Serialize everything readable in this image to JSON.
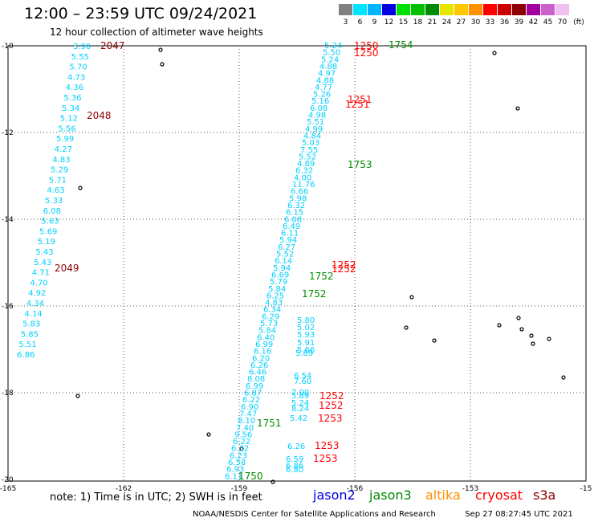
{
  "header": {
    "title": "12:00 – 23:59 UTC 09/24/2021",
    "subtitle": "12 hour collection of altimeter wave heights"
  },
  "legend": {
    "bins": [
      {
        "label": "3",
        "color": "#808080"
      },
      {
        "label": "6",
        "color": "#00e5ff"
      },
      {
        "label": "9",
        "color": "#00b5ff"
      },
      {
        "label": "12",
        "color": "#0000e0"
      },
      {
        "label": "15",
        "color": "#00e000"
      },
      {
        "label": "18",
        "color": "#00c000"
      },
      {
        "label": "21",
        "color": "#008c00"
      },
      {
        "label": "24",
        "color": "#e5e500"
      },
      {
        "label": "27",
        "color": "#ffc800"
      },
      {
        "label": "30",
        "color": "#ff9000"
      },
      {
        "label": "33",
        "color": "#ff0000"
      },
      {
        "label": "36",
        "color": "#cc0000"
      },
      {
        "label": "39",
        "color": "#8c0000"
      },
      {
        "label": "42",
        "color": "#a000a0"
      },
      {
        "label": "45",
        "color": "#cc60cc"
      },
      {
        "label": "70",
        "color": "#f0c0f0"
      }
    ],
    "unit": "(ft)"
  },
  "map": {
    "lat_labels": [
      "-10",
      "-12",
      "-14",
      "-16",
      "-18",
      "-20"
    ],
    "lon_labels": [
      "-165",
      "-162",
      "-159",
      "-156",
      "-153",
      "-15"
    ],
    "track_left": [
      "3.90",
      "5.55",
      "5.70",
      "4.73",
      "4.36",
      "5.36",
      "5.34",
      "5.12",
      "5.56",
      "5.99",
      "4.27",
      "4.83",
      "5.29",
      "5.71",
      "4.63",
      "5.33",
      "6.08",
      "5.63",
      "5.69",
      "5.19",
      "5.43",
      "5.43",
      "4.71",
      "4.70",
      "4.92",
      "4.34",
      "4.14",
      "5.83",
      "5.85",
      "5.51",
      "6.86"
    ],
    "track_left_times": [
      "2047",
      "2048",
      "2049"
    ],
    "track_mid": [
      "5.24",
      "5.50",
      "5.24",
      "4.88",
      "4.97",
      "4.88",
      "4.77",
      "5.26",
      "5.16",
      "6.08",
      "4.98",
      "5.51",
      "4.99",
      "4.84",
      "5.03",
      "7.55",
      "5.52",
      "4.89",
      "6.32",
      "4.00",
      "11.76",
      "6.66",
      "5.98",
      "6.32",
      "6.15",
      "6.08",
      "6.49",
      "6.11",
      "5.94",
      "6.27",
      "5.52",
      "6.14",
      "5.94",
      "6.69",
      "5.79",
      "5.84",
      "6.25",
      "4.83",
      "6.34",
      "6.29",
      "5.73",
      "5.84",
      "6.40",
      "6.99",
      "6.16",
      "6.20",
      "6.26",
      "6.46",
      "8.08",
      "6.99",
      "6.87",
      "6.22",
      "6.90",
      "7.47",
      "8.10",
      "7.40",
      "9.56",
      "6.22",
      "6.32",
      "6.23",
      "6.58",
      "6.93",
      "6.11"
    ],
    "track_mid_times_green": [
      "1754",
      "1753",
      "1752",
      "1752",
      "1751",
      "1750"
    ],
    "track_mid_times_red": [
      "1250",
      "1250",
      "1251",
      "1251",
      "1252",
      "1252"
    ],
    "track_right": [
      "5.80",
      "5.02",
      "5.93",
      "5.91",
      "5.66",
      "5.89",
      "6.54",
      "7.60",
      "7.00",
      "5.89",
      "5.24",
      "8.24",
      "5.42",
      "6.26",
      "6.59",
      "6.86",
      "6.80"
    ],
    "track_right_times": [
      "1252",
      "1252",
      "1253",
      "1253",
      "1253"
    ]
  },
  "footer": {
    "note": "note: 1) Time is in UTC; 2) SWH is in feet",
    "satellites": [
      {
        "name": "jason2",
        "color": "#0000e0"
      },
      {
        "name": "jason3",
        "color": "#008c00"
      },
      {
        "name": "altika",
        "color": "#ff9000"
      },
      {
        "name": "cryosat",
        "color": "#ff0000"
      },
      {
        "name": "s3a",
        "color": "#8c0000"
      }
    ],
    "credit": "NOAA/NESDIS Center for Satellite Applications and Research",
    "timestamp": "Sep 27 08:27:45 UTC 2021"
  }
}
